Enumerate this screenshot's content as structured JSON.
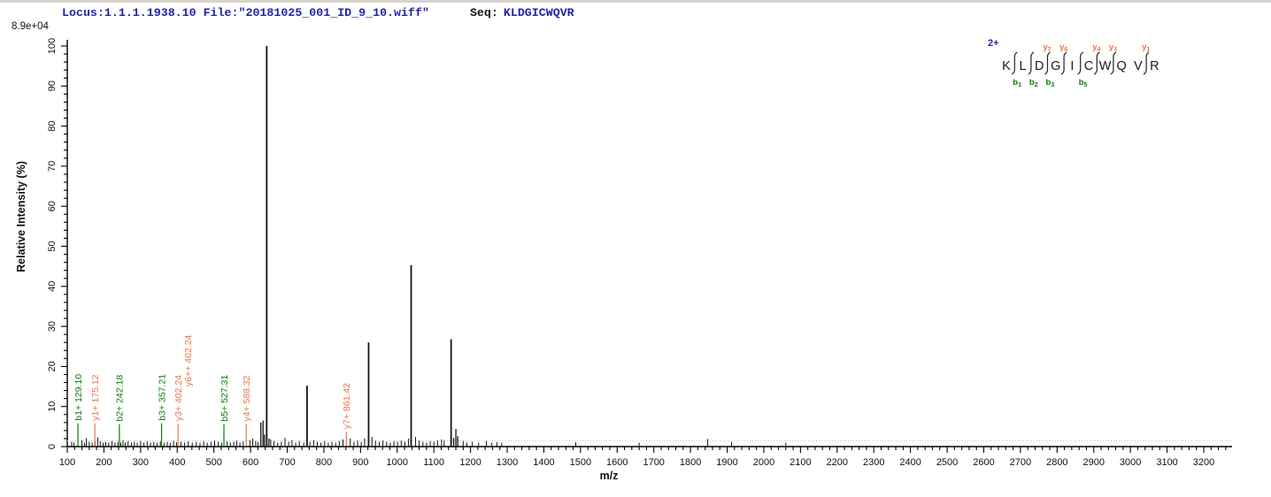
{
  "header": {
    "locus_file": "Locus:1.1.1.1938.10 File:\"20181025_001_ID_9_10.wiff\"",
    "seq_label": "Seq:",
    "sequence": "KLDGICWQVR"
  },
  "colors": {
    "annotation_blue": "#2323ab",
    "b_ion_green": "#0b7d0b",
    "y_ion_orange": "#e8784e",
    "peak_black": "#141414",
    "axis_black": "#000000",
    "threshold_gray": "#c9c9c9",
    "residue_black": "#1a1a1a"
  },
  "y_axis": {
    "label": "Relative Intensity (%)",
    "max_counts_label": "8.9e+04",
    "min": 0,
    "max": 100,
    "major_tick_step": 10,
    "minor_tick_step": 2
  },
  "x_axis": {
    "label": "m/z",
    "min": 100,
    "max": 3200,
    "major_tick_step": 100,
    "minor_tick_step": 20
  },
  "sequence_panel": {
    "charge": "2+",
    "residues": [
      "K",
      "L",
      "D",
      "G",
      "I",
      "C",
      "W",
      "Q",
      "V",
      "R"
    ],
    "dividers": [
      {
        "gap": 1,
        "b": "1",
        "y": null
      },
      {
        "gap": 2,
        "b": "2",
        "y": null
      },
      {
        "gap": 3,
        "b": "3",
        "y": "7"
      },
      {
        "gap": 4,
        "b": null,
        "y": "6"
      },
      {
        "gap": 5,
        "b": "5",
        "y": null
      },
      {
        "gap": 6,
        "b": null,
        "y": "4"
      },
      {
        "gap": 7,
        "b": null,
        "y": "3"
      },
      {
        "gap": 9,
        "b": null,
        "y": "1"
      }
    ]
  },
  "chart_data": {
    "type": "bar",
    "title": "",
    "xlabel": "m/z",
    "ylabel": "Relative Intensity (%)",
    "xlim": [
      100,
      3200
    ],
    "ylim": [
      0,
      100
    ],
    "base_peak_counts": "8.9e+04",
    "annotated_peaks": [
      {
        "mz": 129.1,
        "intensity": 5.8,
        "ion": "b1+",
        "label": "b1+ 129.10",
        "series": "b"
      },
      {
        "mz": 175.12,
        "intensity": 5.8,
        "ion": "y1+",
        "label": "y1+ 175.12",
        "series": "y"
      },
      {
        "mz": 242.18,
        "intensity": 5.6,
        "ion": "b2+",
        "label": "b2+ 242.18",
        "series": "b"
      },
      {
        "mz": 357.21,
        "intensity": 5.8,
        "ion": "b3+",
        "label": "b3+ 357.21",
        "series": "b"
      },
      {
        "mz": 402.24,
        "intensity": 5.7,
        "ion": "y3+",
        "label": "y3+ 402.24",
        "series": "y",
        "extra_label": "y6++ 402.24"
      },
      {
        "mz": 527.31,
        "intensity": 5.6,
        "ion": "b5+",
        "label": "b5+ 527.31",
        "series": "b"
      },
      {
        "mz": 588.32,
        "intensity": 5.6,
        "ion": "y4+",
        "label": "y4+ 588.32",
        "series": "y"
      },
      {
        "mz": 861.42,
        "intensity": 3.7,
        "ion": "y7+",
        "label": "y7+ 861.42",
        "series": "y"
      }
    ],
    "major_peaks": [
      [
        628,
        6.0
      ],
      [
        634,
        6.5
      ],
      [
        638,
        3.0
      ],
      [
        644,
        100
      ],
      [
        650,
        2.0
      ],
      [
        754,
        15.2
      ],
      [
        922,
        26.0
      ],
      [
        1038,
        45.3
      ],
      [
        1147,
        26.8
      ],
      [
        1154,
        2.2
      ],
      [
        1160,
        4.4
      ],
      [
        1165,
        2.6
      ]
    ],
    "noise_peaks": [
      [
        112,
        1.2
      ],
      [
        118,
        1.0
      ],
      [
        140,
        1.6
      ],
      [
        147,
        1.0
      ],
      [
        152,
        2.1
      ],
      [
        160,
        1.2
      ],
      [
        168,
        1.0
      ],
      [
        176,
        1.3
      ],
      [
        183,
        2.3
      ],
      [
        190,
        1.4
      ],
      [
        198,
        1.0
      ],
      [
        205,
        1.2
      ],
      [
        213,
        1.0
      ],
      [
        222,
        1.4
      ],
      [
        230,
        1.0
      ],
      [
        238,
        1.2
      ],
      [
        246,
        1.0
      ],
      [
        252,
        1.6
      ],
      [
        258,
        1.0
      ],
      [
        266,
        1.4
      ],
      [
        275,
        1.0
      ],
      [
        283,
        1.2
      ],
      [
        291,
        1.0
      ],
      [
        300,
        1.4
      ],
      [
        309,
        1.0
      ],
      [
        318,
        1.3
      ],
      [
        327,
        1.0
      ],
      [
        336,
        1.2
      ],
      [
        345,
        1.0
      ],
      [
        354,
        1.3
      ],
      [
        364,
        1.0
      ],
      [
        373,
        1.2
      ],
      [
        381,
        1.0
      ],
      [
        390,
        1.4
      ],
      [
        398,
        1.1
      ],
      [
        410,
        1.2
      ],
      [
        420,
        1.0
      ],
      [
        430,
        1.3
      ],
      [
        441,
        1.0
      ],
      [
        452,
        1.2
      ],
      [
        462,
        1.0
      ],
      [
        472,
        1.4
      ],
      [
        482,
        1.0
      ],
      [
        492,
        1.2
      ],
      [
        502,
        1.5
      ],
      [
        512,
        1.2
      ],
      [
        521,
        1.0
      ],
      [
        536,
        1.3
      ],
      [
        545,
        1.0
      ],
      [
        554,
        1.2
      ],
      [
        562,
        1.5
      ],
      [
        571,
        1.0
      ],
      [
        580,
        1.3
      ],
      [
        598,
        1.6
      ],
      [
        606,
        2.0
      ],
      [
        614,
        1.4
      ],
      [
        620,
        1.1
      ],
      [
        655,
        1.8
      ],
      [
        664,
        1.4
      ],
      [
        674,
        1.0
      ],
      [
        684,
        1.2
      ],
      [
        694,
        2.2
      ],
      [
        704,
        1.2
      ],
      [
        713,
        1.6
      ],
      [
        723,
        1.0
      ],
      [
        733,
        1.4
      ],
      [
        745,
        1.0
      ],
      [
        762,
        1.2
      ],
      [
        772,
        1.6
      ],
      [
        782,
        1.2
      ],
      [
        792,
        1.0
      ],
      [
        802,
        1.4
      ],
      [
        812,
        1.0
      ],
      [
        822,
        1.2
      ],
      [
        832,
        1.0
      ],
      [
        842,
        1.4
      ],
      [
        852,
        1.8
      ],
      [
        872,
        2.0
      ],
      [
        882,
        1.2
      ],
      [
        892,
        1.5
      ],
      [
        902,
        1.2
      ],
      [
        911,
        2.0
      ],
      [
        931,
        2.4
      ],
      [
        941,
        1.5
      ],
      [
        951,
        1.2
      ],
      [
        961,
        1.5
      ],
      [
        971,
        1.2
      ],
      [
        981,
        1.0
      ],
      [
        991,
        1.3
      ],
      [
        1001,
        1.2
      ],
      [
        1011,
        1.5
      ],
      [
        1021,
        1.2
      ],
      [
        1031,
        2.0
      ],
      [
        1050,
        2.4
      ],
      [
        1060,
        1.5
      ],
      [
        1070,
        1.2
      ],
      [
        1080,
        1.0
      ],
      [
        1090,
        1.3
      ],
      [
        1100,
        1.2
      ],
      [
        1110,
        1.5
      ],
      [
        1121,
        1.8
      ],
      [
        1128,
        1.5
      ],
      [
        1180,
        1.4
      ],
      [
        1190,
        1.0
      ],
      [
        1205,
        1.2
      ],
      [
        1222,
        1.0
      ],
      [
        1243,
        1.4
      ],
      [
        1258,
        1.0
      ],
      [
        1272,
        1.1
      ],
      [
        1285,
        1.0
      ],
      [
        1487,
        1.1
      ],
      [
        1660,
        1.0
      ],
      [
        1847,
        1.9
      ],
      [
        1912,
        1.2
      ],
      [
        2060,
        1.0
      ]
    ],
    "legend_position": "none",
    "grid": false
  }
}
